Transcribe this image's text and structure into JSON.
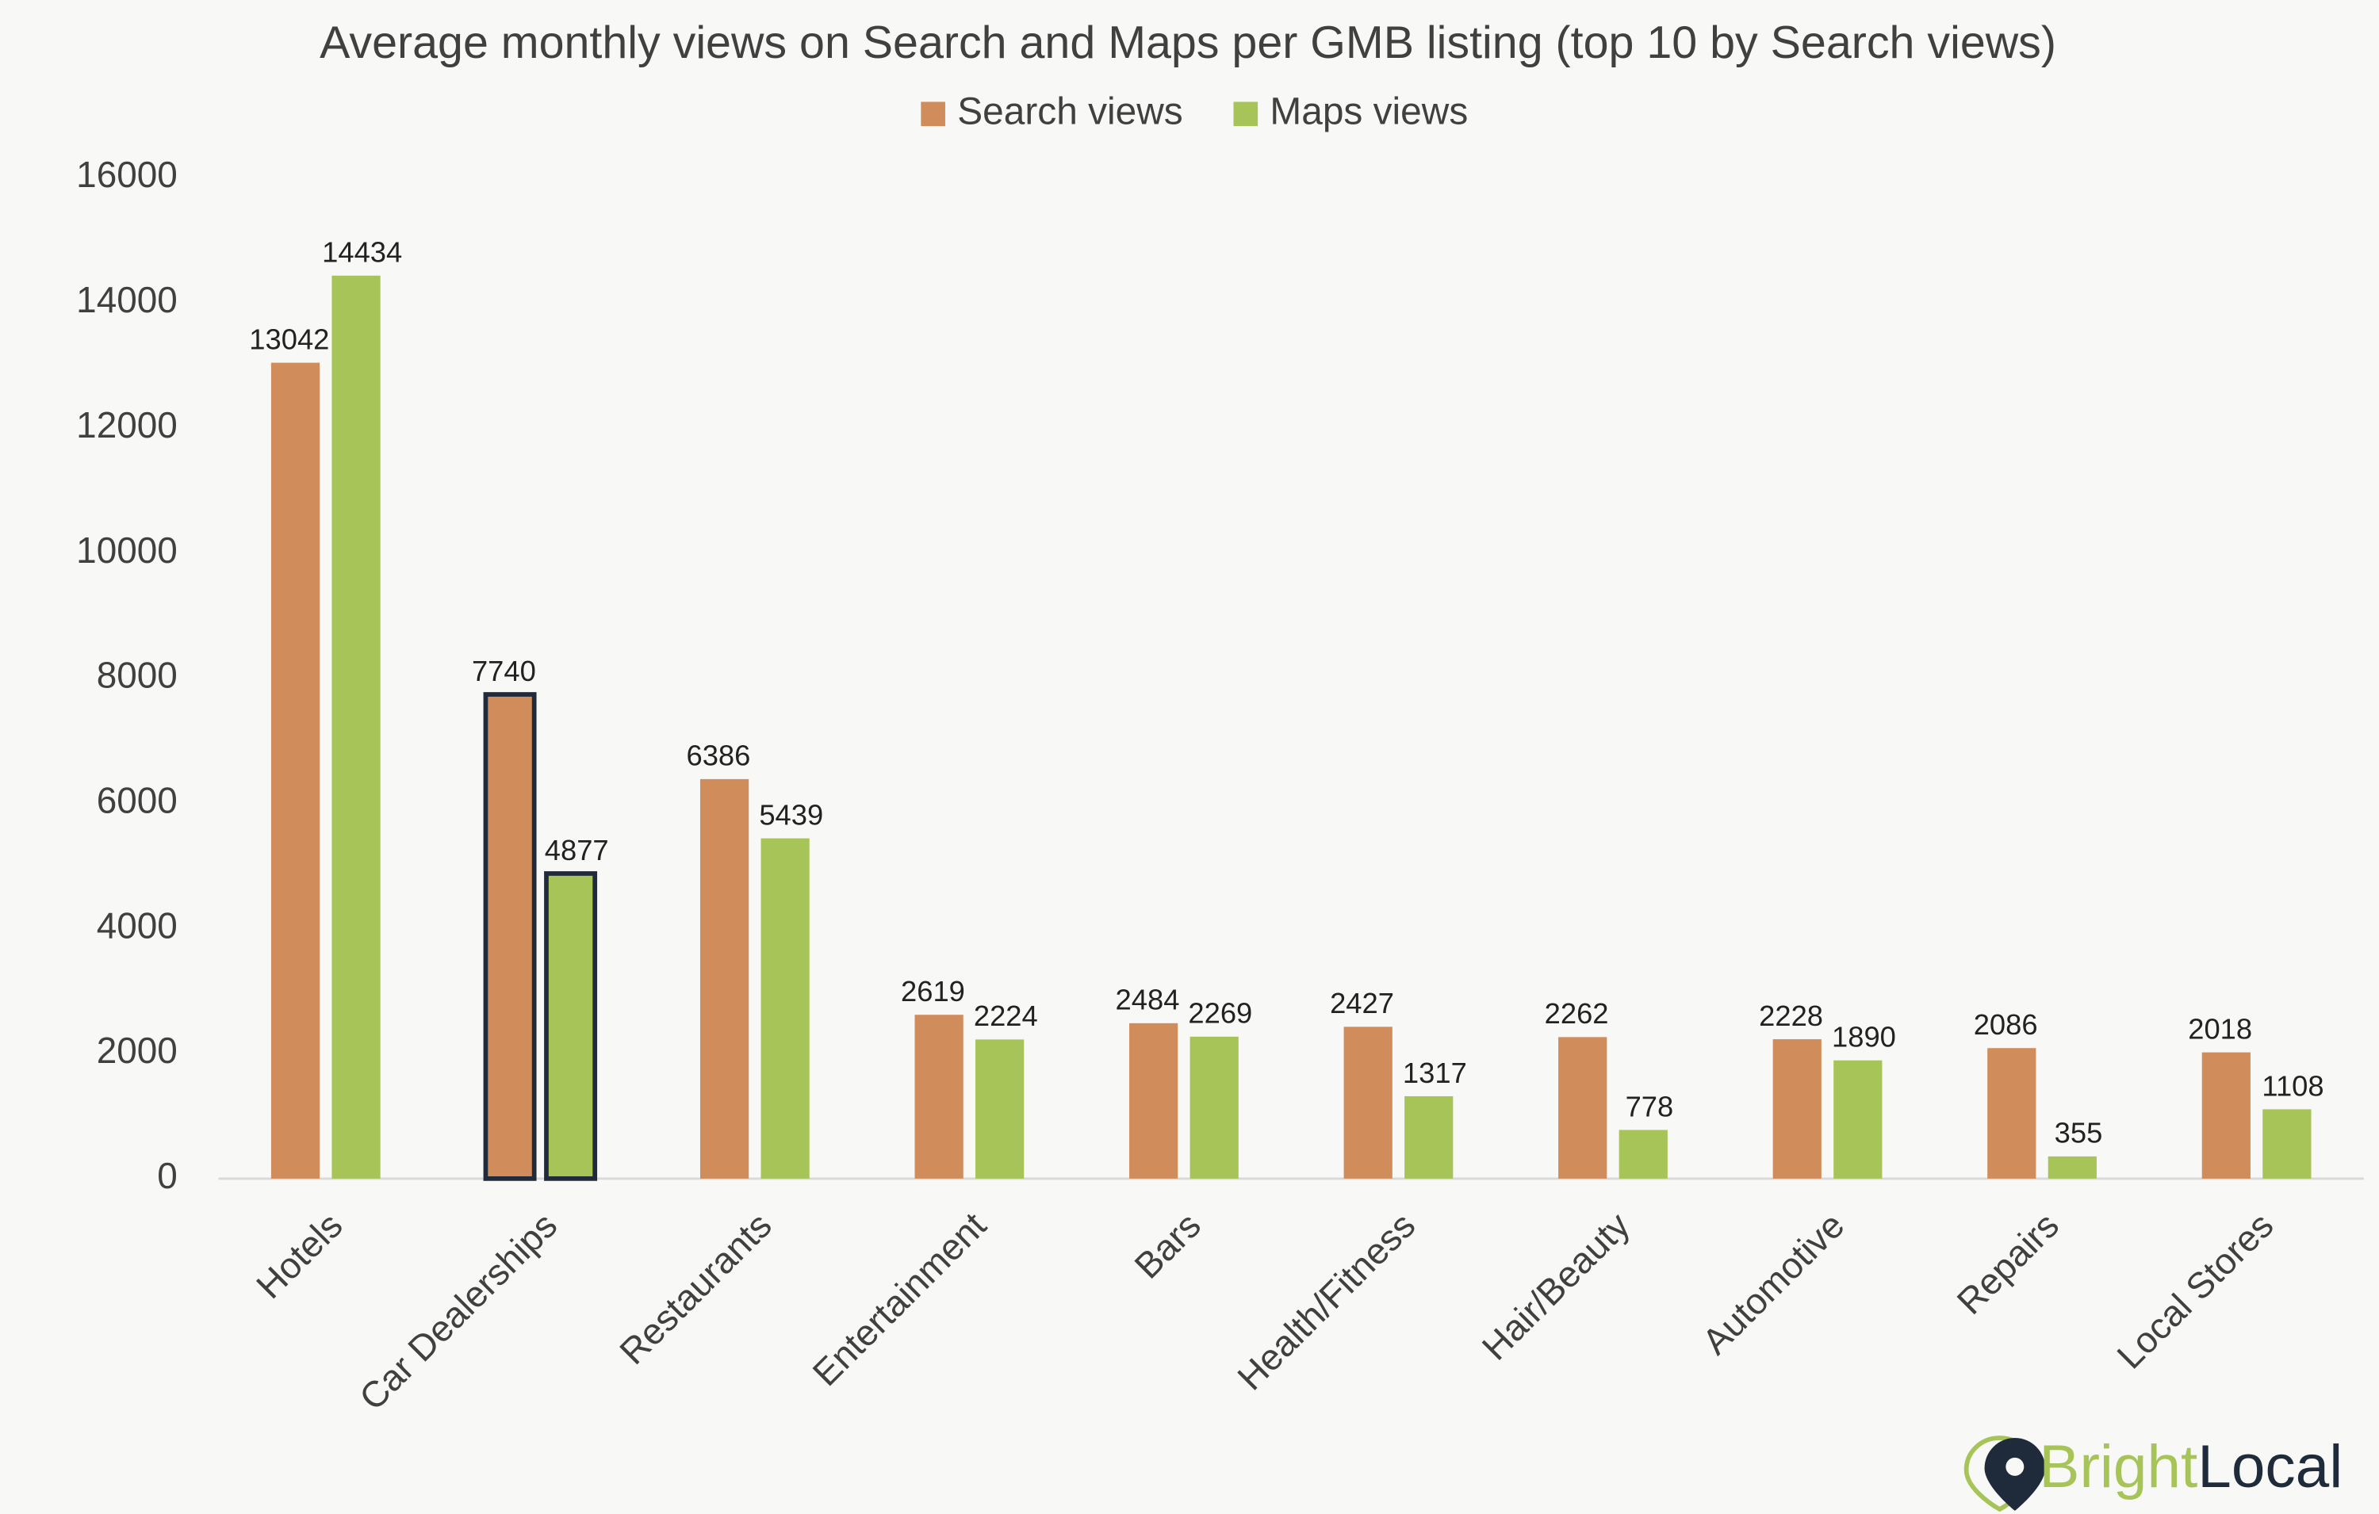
{
  "chart_data": {
    "type": "bar",
    "title": "Average monthly views on Search and Maps per GMB listing (top 10 by Search views)",
    "categories": [
      "Hotels",
      "Car Dealerships",
      "Restaurants",
      "Entertainment",
      "Bars",
      "Health/Fitness",
      "Hair/Beauty",
      "Automotive",
      "Repairs",
      "Local Stores"
    ],
    "series": [
      {
        "name": "Search views",
        "color": "#d08c5b",
        "values": [
          13042,
          7740,
          6386,
          2619,
          2484,
          2427,
          2262,
          2228,
          2086,
          2018
        ]
      },
      {
        "name": "Maps views",
        "color": "#a6c458",
        "values": [
          14434,
          4877,
          5439,
          2224,
          2269,
          1317,
          778,
          1890,
          355,
          1108
        ]
      }
    ],
    "ylim": [
      0,
      16000
    ],
    "yticks": [
      0,
      2000,
      4000,
      6000,
      8000,
      10000,
      12000,
      14000,
      16000
    ],
    "grid": false,
    "legend": "top",
    "highlight_index": 1
  },
  "logo": {
    "first": "Bright",
    "second": "Local"
  }
}
